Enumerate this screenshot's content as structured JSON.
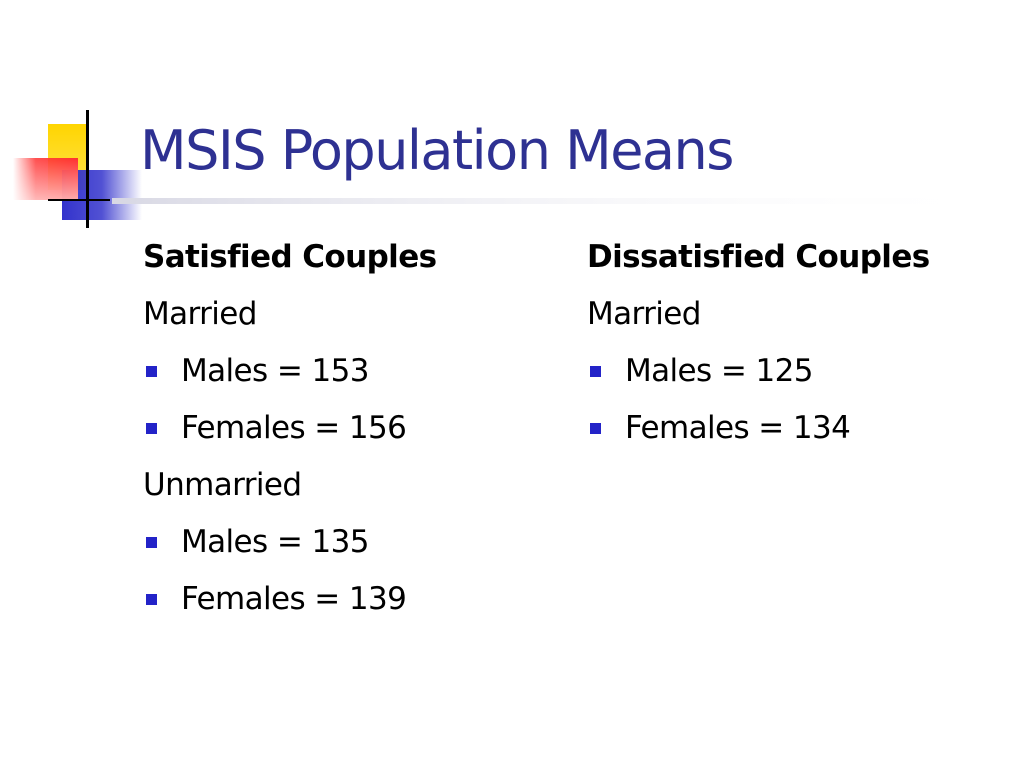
{
  "slide": {
    "title": "MSIS Population Means",
    "accent_colors": {
      "title": "#2E3192",
      "bullet": "#2323C8",
      "decor_yellow": "#FFD500",
      "decor_red": "#FF3030",
      "decor_blue": "#3333CC",
      "decor_line": "#000000"
    }
  },
  "columns": [
    {
      "heading": "Satisfied Couples",
      "groups": [
        {
          "label": "Married",
          "items": [
            "Males = 153",
            "Females = 156"
          ]
        },
        {
          "label": "Unmarried",
          "items": [
            "Males = 135",
            "Females = 139"
          ]
        }
      ]
    },
    {
      "heading": "Dissatisfied Couples",
      "groups": [
        {
          "label": "Married",
          "items": [
            "Males = 125",
            "Females = 134"
          ]
        }
      ]
    }
  ],
  "icons": {
    "bullet": "square-bullet-icon",
    "decor": "slide-corner-decoration"
  }
}
